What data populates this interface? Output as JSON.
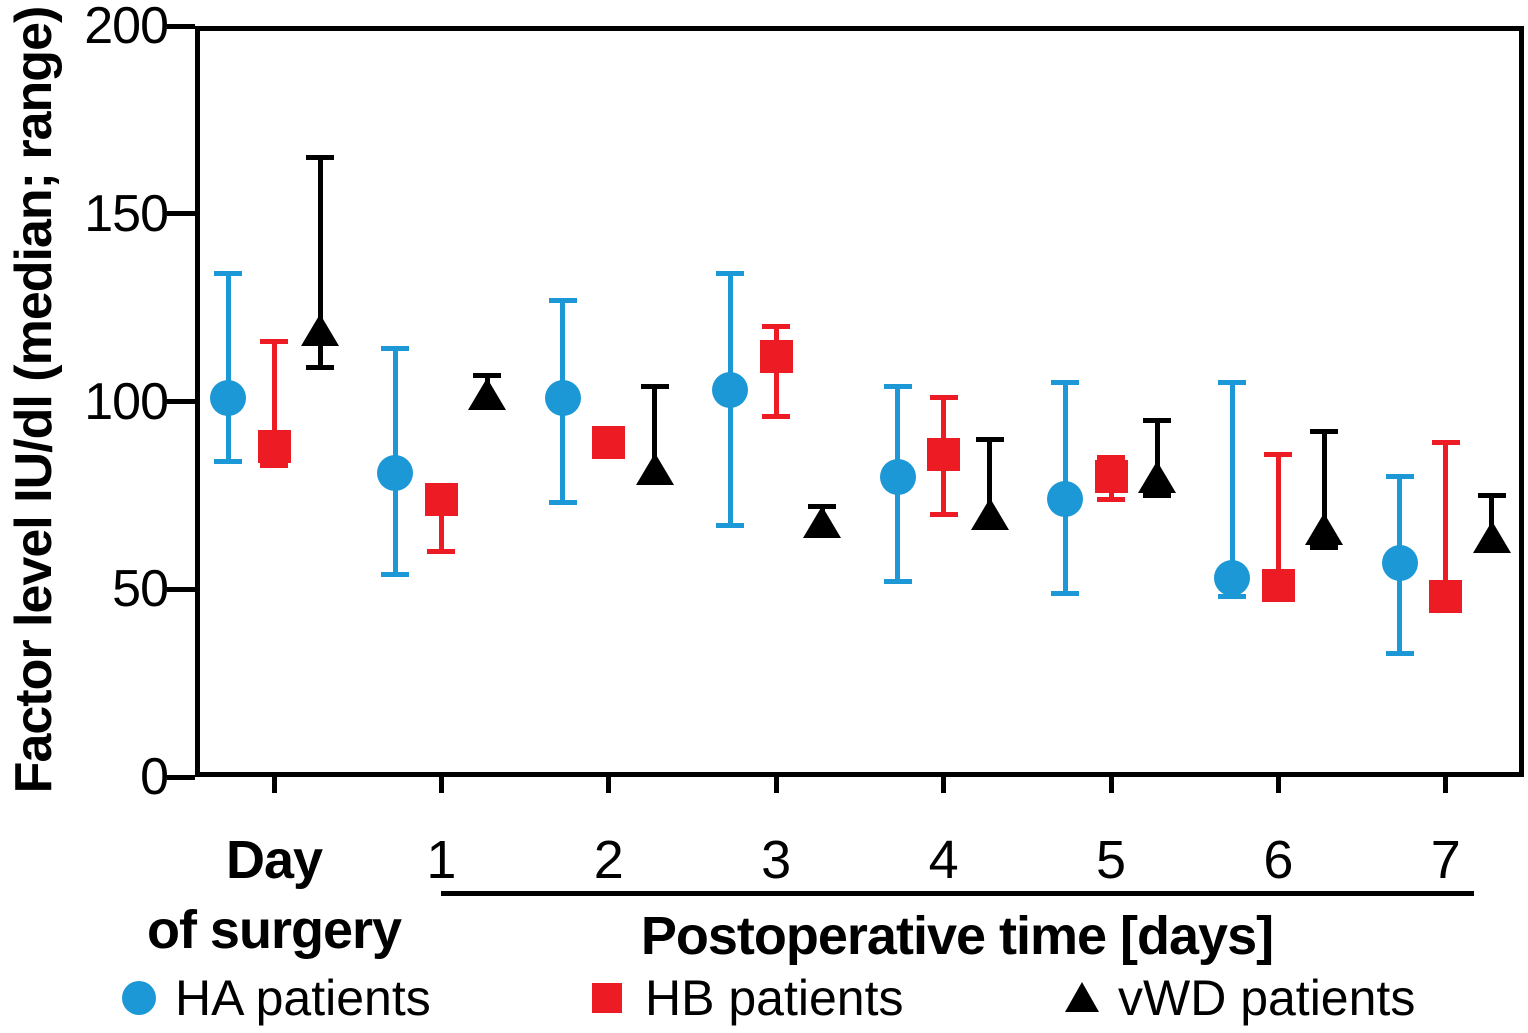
{
  "figure": {
    "y_axis_title": "Factor level IU/dl (median; range)"
  },
  "x_axis": {
    "day_line1": "Day",
    "day_line2": "of surgery",
    "group_label": "Postoperative time [days]"
  },
  "legend": [
    {
      "label": "HA patients",
      "marker": "circle",
      "color": "#1b98d5"
    },
    {
      "label": "HB patients",
      "marker": "square",
      "color": "#ed1c24"
    },
    {
      "label": "vWD patients",
      "marker": "triangle",
      "color": "#000000"
    }
  ],
  "chart_data": {
    "type": "scatter",
    "subtype": "median-with-range-error-bars",
    "title": "",
    "xlabel": "Postoperative time [days]",
    "ylabel": "Factor level IU/dl (median; range)",
    "ylim": [
      0,
      200
    ],
    "y_ticks": [
      "0",
      "50",
      "100",
      "150",
      "200"
    ],
    "y_tick_values": [
      0,
      50,
      100,
      150,
      200
    ],
    "grid": false,
    "legend_position": "bottom",
    "categories": [
      "Day of surgery",
      "1",
      "2",
      "3",
      "4",
      "5",
      "6",
      "7"
    ],
    "series": [
      {
        "name": "HA patients",
        "marker": "circle",
        "color": "#1b98d5",
        "median": [
          101,
          81,
          101,
          103,
          80,
          74,
          53,
          57
        ],
        "low": [
          84,
          54,
          73,
          67,
          52,
          49,
          48,
          33
        ],
        "high": [
          134,
          114,
          127,
          134,
          104,
          105,
          105,
          80
        ]
      },
      {
        "name": "HB patients",
        "marker": "square",
        "color": "#ed1c24",
        "median": [
          88,
          74,
          89,
          112,
          86,
          80,
          51,
          48
        ],
        "low": [
          83,
          60,
          85,
          96,
          70,
          74,
          47,
          48
        ],
        "high": [
          116,
          77,
          92,
          120,
          101,
          85,
          86,
          89
        ]
      },
      {
        "name": "vWD patients",
        "marker": "triangle",
        "color": "#000000",
        "median": [
          119,
          102,
          82,
          68,
          70,
          80,
          66,
          64
        ],
        "low": [
          109,
          98,
          80,
          65,
          67,
          75,
          61,
          61
        ],
        "high": [
          165,
          107,
          104,
          72,
          90,
          95,
          92,
          75
        ]
      }
    ]
  }
}
